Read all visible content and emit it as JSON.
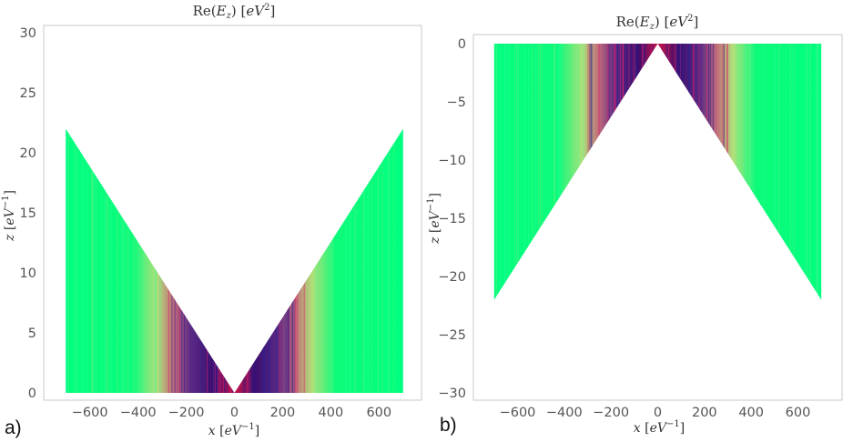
{
  "figure": {
    "panels": [
      "a)",
      "b)"
    ]
  },
  "chart_data": [
    {
      "type": "heatmap",
      "title": "Re(E_z) [eV^2]",
      "xlabel": "x [eV^-1]",
      "ylabel": "z [eV^-1]",
      "xlim": [
        -750,
        750
      ],
      "ylim": [
        -0.5,
        31
      ],
      "xticks": [
        -600,
        -400,
        -200,
        0,
        200,
        400,
        600
      ],
      "yticks": [
        0,
        5,
        10,
        15,
        20,
        25,
        30
      ],
      "cone": {
        "apex": [
          0,
          0
        ],
        "x_extent": [
          -700,
          700
        ],
        "z_at_edges": 22,
        "direction": "up"
      },
      "colors": {
        "far_field": "#00ff7f",
        "near_field_dark": "#3a0d6e",
        "near_field_accent": "#c0124e"
      }
    },
    {
      "type": "heatmap",
      "title": "Re(E_z) [eV^2]",
      "xlabel": "x [eV^-1]",
      "ylabel": "z [eV^-1]",
      "xlim": [
        -750,
        750
      ],
      "ylim": [
        -31,
        0.5
      ],
      "xticks": [
        -600,
        -400,
        -200,
        0,
        200,
        400,
        600
      ],
      "yticks": [
        0,
        -5,
        -10,
        -15,
        -20,
        -25,
        -30
      ],
      "cone": {
        "apex": [
          0,
          0
        ],
        "x_extent": [
          -700,
          700
        ],
        "z_at_edges": -22,
        "direction": "down"
      },
      "colors": {
        "far_field": "#00ff7f",
        "near_field_dark": "#3a0d6e",
        "near_field_accent": "#c0124e"
      }
    }
  ]
}
